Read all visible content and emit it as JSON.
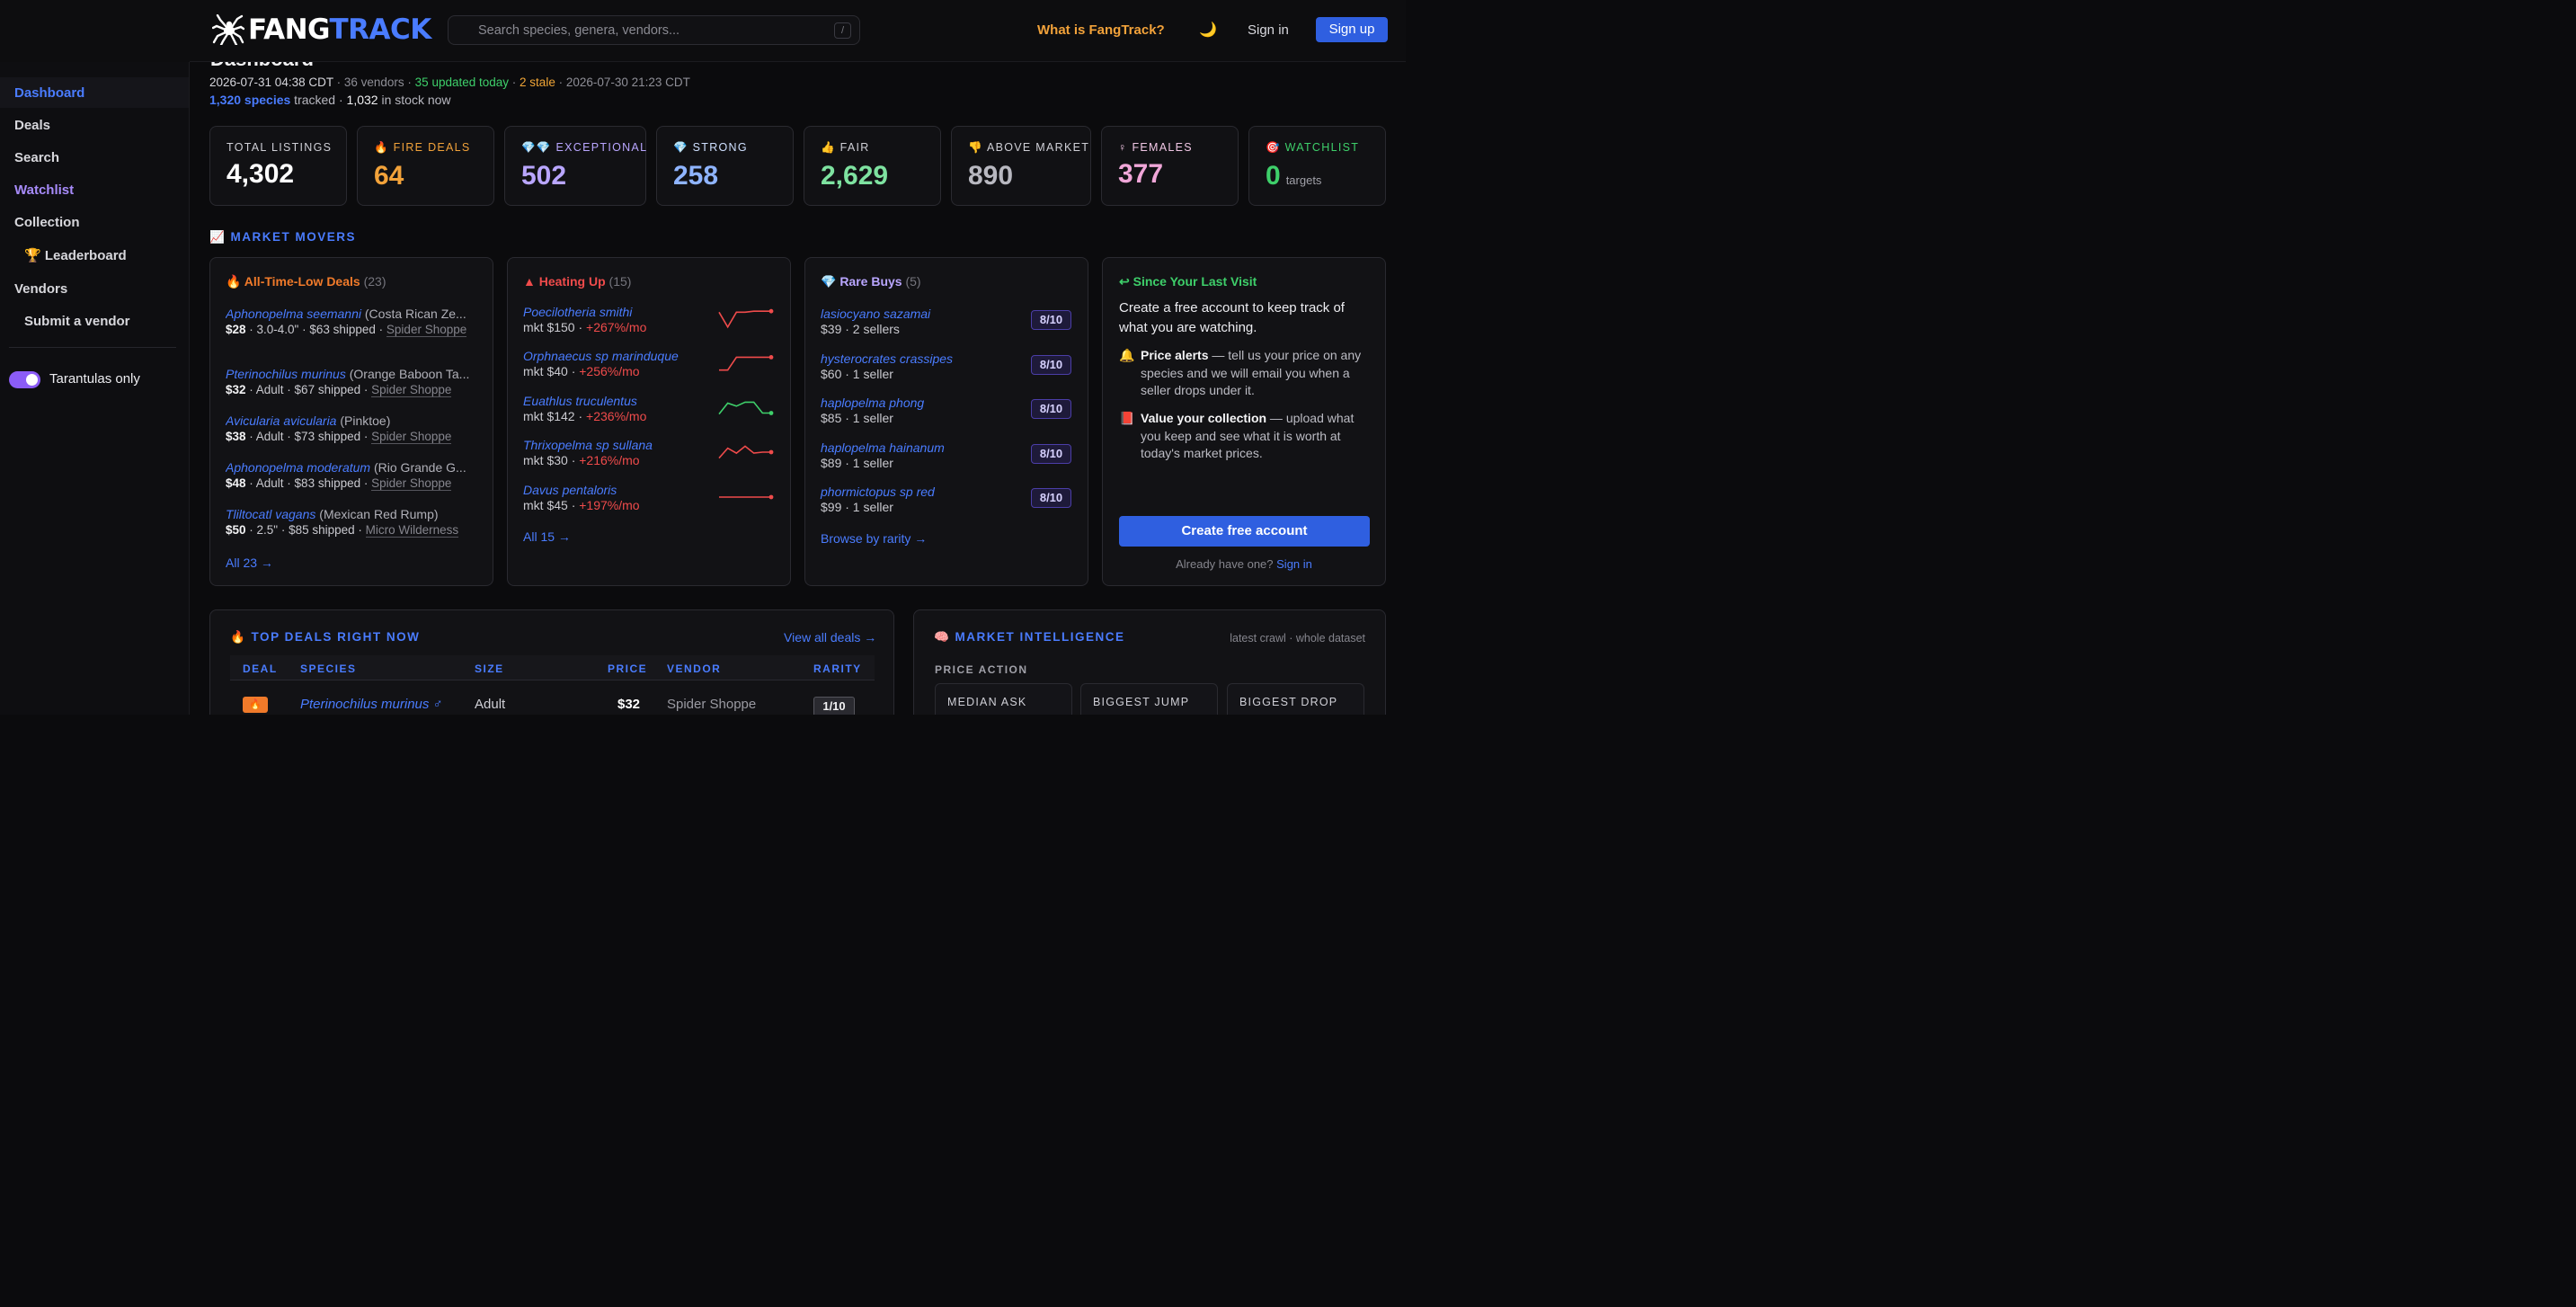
{
  "header": {
    "logo_fang": "FANG",
    "logo_track": "TRACK",
    "search_placeholder": "Search species, genera, vendors...",
    "search_shortcut": "/",
    "what_is": "What is FangTrack?",
    "theme_icon": "🌙",
    "sign_in": "Sign in",
    "sign_up": "Sign up"
  },
  "sidebar": {
    "items": [
      {
        "label": "Dashboard",
        "active": true,
        "color": "#4a7cff"
      },
      {
        "label": "Deals",
        "color": "#d7d7dc"
      },
      {
        "label": "Search",
        "color": "#d7d7dc"
      },
      {
        "label": "Watchlist",
        "color": "#a78bfa"
      },
      {
        "label": "Collection",
        "color": "#d7d7dc"
      },
      {
        "label": "🏆 Leaderboard",
        "color": "#d7d7dc"
      },
      {
        "label": "Vendors",
        "color": "#d7d7dc"
      },
      {
        "label": "Submit a vendor",
        "color": "#d7d7dc"
      }
    ],
    "toggle_label": "Tarantulas only",
    "toggle_on": true
  },
  "dashboard": {
    "title": "Dashboard",
    "crawl_time": "2026-07-31 04:38 CDT",
    "vendors": "· 36 vendors ·",
    "updated": "35 updated today",
    "sep": "·",
    "stale": "2 stale",
    "stale_time": "· 2026-07-30 21:23 CDT",
    "species_count": "1,320 species",
    "tracked": " tracked · ",
    "in_stock": "1,032",
    "in_stock_text": " in stock now"
  },
  "stats": [
    {
      "label": "TOTAL LISTINGS",
      "value": "4,302",
      "color": "#ffffff",
      "label_color": "#cfcfd6"
    },
    {
      "label": "🔥 FIRE DEALS",
      "value": "64",
      "color": "#f2a23a",
      "label_color": "#f2a23a"
    },
    {
      "label": "💎💎 EXCEPTIONAL",
      "value": "502",
      "color": "#b9a6ff",
      "label_color": "#b9a6ff"
    },
    {
      "label": "💎 STRONG",
      "value": "258",
      "color": "#8fb4ff",
      "label_color": "#cfe0ff"
    },
    {
      "label": "👍 FAIR",
      "value": "2,629",
      "color": "#7ee2a0",
      "label_color": "#cfcfd6"
    },
    {
      "label": "👎 ABOVE MARKET",
      "value": "890",
      "color": "#b8b8c0",
      "label_color": "#cfcfd6"
    },
    {
      "label": "♀ FEMALES",
      "value": "377",
      "color": "#f0a6d8",
      "label_color": "#f0c6e4"
    },
    {
      "label": "🎯 WATCHLIST",
      "value": "0",
      "sub": "targets",
      "color": "#3ecf6a",
      "label_color": "#3ecf6a"
    }
  ],
  "market_movers": {
    "heading": "📈 MARKET MOVERS",
    "all_time_low": {
      "title": "🔥 All-Time-Low Deals",
      "count": "(23)",
      "items": [
        {
          "species": "Aphonopelma seemanni",
          "common": "(Costa Rican Ze...",
          "price": "$28",
          "details": " · 3.0-4.0\" · $63 shipped · ",
          "vendor": "Spider Shoppe"
        },
        {
          "species": "Pterinochilus murinus",
          "common": "(Orange Baboon Ta...",
          "price": "$32",
          "details": " · Adult · $67 shipped · ",
          "vendor": "Spider Shoppe"
        },
        {
          "species": "Avicularia avicularia",
          "common": "(Pinktoe)",
          "price": "$38",
          "details": " · Adult · $73 shipped · ",
          "vendor": "Spider Shoppe"
        },
        {
          "species": "Aphonopelma moderatum",
          "common": "(Rio Grande G...",
          "price": "$48",
          "details": " · Adult · $83 shipped · ",
          "vendor": "Spider Shoppe"
        },
        {
          "species": "Tliltocatl vagans",
          "common": "(Mexican Red Rump)",
          "price": "$50",
          "details": " · 2.5\" · $85 shipped · ",
          "vendor": "Micro Wilderness"
        }
      ],
      "all_link": "All 23 →"
    },
    "heating_up": {
      "title": "▲ Heating Up",
      "count": "(15)",
      "items": [
        {
          "species": "Poecilotheria smithi",
          "mkt": "mkt $150 · ",
          "pct": "+267%/mo",
          "color": "#ef4b4b",
          "trend": [
            0.15,
            0.9,
            0.15,
            0.15,
            0.1,
            0.1,
            0.1
          ]
        },
        {
          "species": "Orphnaecus sp marinduque",
          "mkt": "mkt $40 · ",
          "pct": "+256%/mo",
          "color": "#ef4b4b",
          "trend": [
            0.85,
            0.85,
            0.2,
            0.2,
            0.2,
            0.2,
            0.2
          ]
        },
        {
          "species": "Euathlus truculentus",
          "mkt": "mkt $142 · ",
          "pct": "+236%/mo",
          "color": "#3ecf6a",
          "trend": [
            0.8,
            0.25,
            0.4,
            0.2,
            0.2,
            0.75,
            0.75
          ]
        },
        {
          "species": "Thrixopelma sp sullana",
          "mkt": "mkt $30 · ",
          "pct": "+216%/mo",
          "color": "#ef4b4b",
          "trend": [
            0.8,
            0.3,
            0.55,
            0.2,
            0.55,
            0.5,
            0.5
          ]
        },
        {
          "species": "Davus pentaloris",
          "mkt": "mkt $45 · ",
          "pct": "+197%/mo",
          "color": "#ef4b4b",
          "trend": [
            0.5,
            0.5,
            0.5,
            0.5,
            0.5,
            0.5,
            0.5
          ]
        }
      ],
      "all_link": "All 15 →"
    },
    "rare_buys": {
      "title": "💎 Rare Buys",
      "count": "(5)",
      "items": [
        {
          "species": "lasiocyano sazamai",
          "info": "$39 · 2 sellers",
          "rarity": "8/10"
        },
        {
          "species": "hysterocrates crassipes",
          "info": "$60 · 1 seller",
          "rarity": "8/10"
        },
        {
          "species": "haplopelma phong",
          "info": "$85 · 1 seller",
          "rarity": "8/10"
        },
        {
          "species": "haplopelma hainanum",
          "info": "$89 · 1 seller",
          "rarity": "8/10"
        },
        {
          "species": "phormictopus sp red",
          "info": "$99 · 1 seller",
          "rarity": "8/10"
        }
      ],
      "browse_link": "Browse by rarity →"
    },
    "since_last": {
      "title": "↩ Since Your Last Visit",
      "text": "Create a free account to keep track of what you are watching.",
      "bullet1_icon": "🔔",
      "bullet1_bold": "Price alerts",
      "bullet1_text": " — tell us your price on any species and we will email you when a seller drops under it.",
      "bullet2_icon": "📕",
      "bullet2_bold": "Value your collection",
      "bullet2_text": " — upload what you keep and see what it is worth at today's market prices.",
      "cta": "Create free account",
      "already": "Already have one?",
      "sign_in": "Sign in"
    }
  },
  "top_deals": {
    "heading": "🔥 TOP DEALS RIGHT NOW",
    "view_all": "View all deals →",
    "columns": [
      "DEAL",
      "SPECIES",
      "SIZE",
      "PRICE",
      "VENDOR",
      "RARITY"
    ],
    "rows": [
      {
        "deal_icon": "🔥",
        "species": "Pterinochilus murinus ♂",
        "size": "Adult",
        "price": "$32",
        "vendor": "Spider Shoppe",
        "rarity": "1/10"
      }
    ]
  },
  "market_intel": {
    "heading": "🧠 MARKET INTELLIGENCE",
    "note": "latest crawl · whole dataset",
    "price_action": "PRICE ACTION",
    "boxes": [
      "MEDIAN ASK",
      "BIGGEST JUMP",
      "BIGGEST DROP"
    ]
  }
}
